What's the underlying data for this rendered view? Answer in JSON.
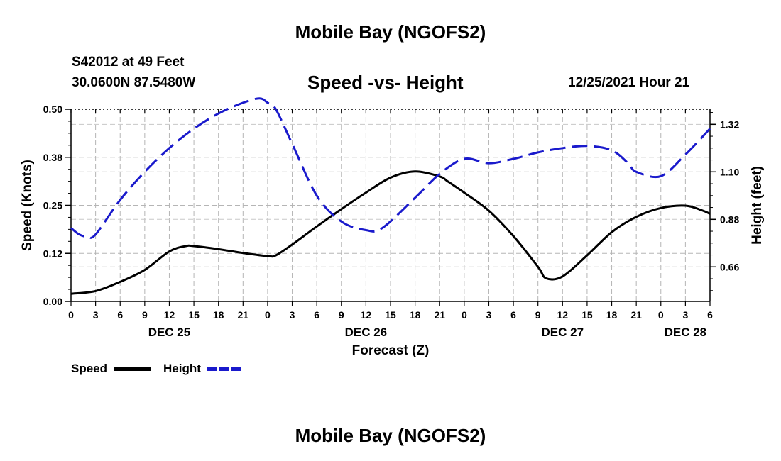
{
  "header": {
    "title": "Mobile Bay (NGOFS2)",
    "station_id": "S42012 at 49 Feet",
    "coords": "30.0600N  87.5480W",
    "chart_title": "Speed -vs- Height",
    "run_time": "12/25/2021 Hour 21"
  },
  "footer": {
    "title": "Mobile Bay (NGOFS2)"
  },
  "chart_data": {
    "type": "line",
    "title": "Speed -vs- Height",
    "xlabel": "Forecast (Z)",
    "ylabel": "Speed (Knots)",
    "y2label": "Height (feet)",
    "x_range": [
      0,
      78
    ],
    "ylim": [
      0,
      0.5
    ],
    "y2lim": [
      0.5,
      1.39
    ],
    "grid": true,
    "x_tick_hours": [
      0,
      3,
      6,
      9,
      12,
      15,
      18,
      21,
      24,
      27,
      30,
      33,
      36,
      39,
      42,
      45,
      48,
      51,
      54,
      57,
      60,
      63,
      66,
      69,
      72,
      75,
      78
    ],
    "x_tick_labels": [
      "0",
      "3",
      "6",
      "9",
      "12",
      "15",
      "18",
      "21",
      "0",
      "3",
      "6",
      "9",
      "12",
      "15",
      "18",
      "21",
      "0",
      "3",
      "6",
      "9",
      "12",
      "15",
      "18",
      "21",
      "0",
      "3",
      "6"
    ],
    "y_ticks": [
      0,
      0.125,
      0.25,
      0.375,
      0.5
    ],
    "y_tick_labels": [
      "0.00",
      "0.12",
      "0.25",
      "0.38",
      "0.50"
    ],
    "y2_ticks": [
      0.66,
      0.88,
      1.1,
      1.32
    ],
    "y2_tick_labels": [
      "0.66",
      "0.88",
      "1.10",
      "1.32"
    ],
    "date_labels": [
      {
        "label": "DEC 25",
        "hour": 12
      },
      {
        "label": "DEC 26",
        "hour": 36
      },
      {
        "label": "DEC 27",
        "hour": 60
      },
      {
        "label": "DEC 28",
        "hour": 75
      }
    ],
    "legend": [
      {
        "name": "Speed",
        "color": "#000000",
        "dash": "solid"
      },
      {
        "name": "Height",
        "color": "#1a1acc",
        "dash": "dashed"
      }
    ],
    "series": [
      {
        "name": "Speed",
        "axis": "left",
        "color": "#000000",
        "x": [
          0,
          3,
          6,
          9,
          12,
          14,
          15,
          18,
          21,
          24,
          25,
          27,
          30,
          33,
          36,
          39,
          42,
          45,
          46,
          48,
          51,
          54,
          57,
          58,
          60,
          63,
          66,
          69,
          72,
          75,
          77,
          78
        ],
        "values": [
          0.02,
          0.027,
          0.051,
          0.082,
          0.13,
          0.144,
          0.144,
          0.136,
          0.126,
          0.118,
          0.12,
          0.148,
          0.195,
          0.24,
          0.283,
          0.322,
          0.338,
          0.325,
          0.312,
          0.283,
          0.236,
          0.17,
          0.09,
          0.06,
          0.065,
          0.12,
          0.18,
          0.22,
          0.243,
          0.249,
          0.237,
          0.228
        ]
      },
      {
        "name": "Height",
        "axis": "right",
        "color": "#1a1acc",
        "x": [
          0,
          1,
          2,
          3,
          6,
          9,
          12,
          15,
          18,
          21,
          23,
          24,
          25,
          27,
          30,
          33,
          36,
          38,
          42,
          45,
          48,
          51,
          54,
          57,
          60,
          63,
          66,
          68,
          69,
          72,
          75,
          78
        ],
        "values": [
          0.84,
          0.81,
          0.8,
          0.81,
          0.97,
          1.1,
          1.21,
          1.3,
          1.37,
          1.42,
          1.44,
          1.42,
          1.39,
          1.23,
          0.99,
          0.87,
          0.83,
          0.84,
          0.98,
          1.09,
          1.16,
          1.14,
          1.16,
          1.19,
          1.21,
          1.22,
          1.2,
          1.14,
          1.1,
          1.08,
          1.18,
          1.3
        ]
      }
    ]
  }
}
